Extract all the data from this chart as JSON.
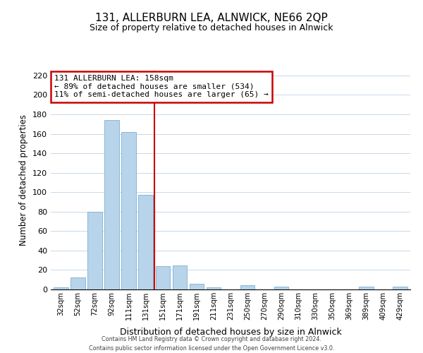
{
  "title": "131, ALLERBURN LEA, ALNWICK, NE66 2QP",
  "subtitle": "Size of property relative to detached houses in Alnwick",
  "xlabel": "Distribution of detached houses by size in Alnwick",
  "ylabel": "Number of detached properties",
  "bar_labels": [
    "32sqm",
    "52sqm",
    "72sqm",
    "92sqm",
    "111sqm",
    "131sqm",
    "151sqm",
    "171sqm",
    "191sqm",
    "211sqm",
    "231sqm",
    "250sqm",
    "270sqm",
    "290sqm",
    "310sqm",
    "330sqm",
    "350sqm",
    "369sqm",
    "389sqm",
    "409sqm",
    "429sqm"
  ],
  "bar_values": [
    2,
    12,
    80,
    174,
    162,
    97,
    24,
    25,
    6,
    2,
    0,
    4,
    0,
    3,
    0,
    0,
    0,
    0,
    3,
    0,
    3
  ],
  "bar_color": "#b8d4ea",
  "bar_edge_color": "#7aafd4",
  "vline_x": 5.5,
  "vline_color": "#cc0000",
  "ylim": [
    0,
    225
  ],
  "yticks": [
    0,
    20,
    40,
    60,
    80,
    100,
    120,
    140,
    160,
    180,
    200,
    220
  ],
  "annotation_title": "131 ALLERBURN LEA: 158sqm",
  "annotation_line1": "← 89% of detached houses are smaller (534)",
  "annotation_line2": "11% of semi-detached houses are larger (65) →",
  "annotation_box_color": "#ffffff",
  "annotation_box_edge": "#cc0000",
  "footer1": "Contains HM Land Registry data © Crown copyright and database right 2024.",
  "footer2": "Contains public sector information licensed under the Open Government Licence v3.0."
}
